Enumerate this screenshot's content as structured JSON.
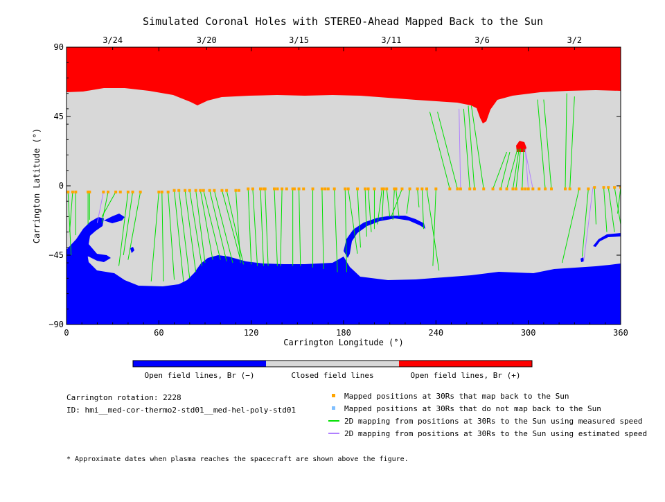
{
  "chart_data": {
    "type": "map",
    "title": "Simulated Coronal Holes with STEREO-Ahead Mapped Back to the Sun",
    "xlabel": "Carrington Longitude (°)",
    "ylabel": "Carrington Latitude (°)",
    "xlim": [
      0,
      360
    ],
    "ylim": [
      -90,
      90
    ],
    "x_ticks": [
      "0",
      "60",
      "120",
      "180",
      "240",
      "300",
      "360"
    ],
    "y_ticks": [
      "90",
      "45",
      "0",
      "−45",
      "−90"
    ],
    "top_dates": [
      {
        "label": "3/24",
        "lon": 30
      },
      {
        "label": "3/20",
        "lon": 91
      },
      {
        "label": "3/15",
        "lon": 151
      },
      {
        "label": "3/11",
        "lon": 211
      },
      {
        "label": "3/6",
        "lon": 270
      },
      {
        "label": "3/2",
        "lon": 330
      }
    ],
    "colorbar": [
      {
        "label": "Open field lines, Br (−)",
        "color": "#0000ff"
      },
      {
        "label": "Closed field lines",
        "color": "#d8d8d8"
      },
      {
        "label": "Open field lines, Br (+)",
        "color": "#ff0000"
      }
    ],
    "mapped_points": [
      [
        1,
        -4
      ],
      [
        4,
        -4
      ],
      [
        6,
        -4
      ],
      [
        14,
        -4
      ],
      [
        15,
        -4
      ],
      [
        24,
        -4
      ],
      [
        27,
        -4
      ],
      [
        32,
        -4
      ],
      [
        35,
        -4
      ],
      [
        40,
        -4
      ],
      [
        43,
        -4
      ],
      [
        48,
        -4
      ],
      [
        60,
        -4
      ],
      [
        62,
        -4
      ],
      [
        66,
        -4
      ],
      [
        70,
        -3
      ],
      [
        73,
        -3
      ],
      [
        77,
        -3
      ],
      [
        80,
        -3
      ],
      [
        84,
        -3
      ],
      [
        87,
        -3
      ],
      [
        89,
        -3
      ],
      [
        93,
        -3
      ],
      [
        96,
        -3
      ],
      [
        101,
        -3
      ],
      [
        104,
        -3
      ],
      [
        110,
        -3
      ],
      [
        112,
        -3
      ],
      [
        118,
        -2
      ],
      [
        121,
        -2
      ],
      [
        126,
        -2
      ],
      [
        128,
        -2
      ],
      [
        129,
        -2
      ],
      [
        135,
        -2
      ],
      [
        137,
        -2
      ],
      [
        140,
        -2
      ],
      [
        143,
        -2
      ],
      [
        147,
        -2
      ],
      [
        148,
        -2
      ],
      [
        151,
        -2
      ],
      [
        154,
        -2
      ],
      [
        160,
        -2
      ],
      [
        166,
        -2
      ],
      [
        168,
        -2
      ],
      [
        170,
        -2
      ],
      [
        174,
        -2
      ],
      [
        181,
        -2
      ],
      [
        183,
        -2
      ],
      [
        189,
        -2
      ],
      [
        194,
        -2
      ],
      [
        196,
        -2
      ],
      [
        200,
        -2
      ],
      [
        205,
        -2
      ],
      [
        206,
        -2
      ],
      [
        208,
        -2
      ],
      [
        213,
        -2
      ],
      [
        214,
        -2
      ],
      [
        218,
        -2
      ],
      [
        223,
        -2
      ],
      [
        228,
        -2
      ],
      [
        231,
        -2
      ],
      [
        234,
        -2
      ],
      [
        240,
        -2
      ],
      [
        249,
        -2
      ],
      [
        254,
        -2
      ],
      [
        256,
        -2
      ],
      [
        262,
        -2
      ],
      [
        265,
        -2
      ],
      [
        271,
        -2
      ],
      [
        277,
        -2
      ],
      [
        282,
        -2
      ],
      [
        286,
        -2
      ],
      [
        290,
        -2
      ],
      [
        292,
        -2
      ],
      [
        296,
        -2
      ],
      [
        298,
        -2
      ],
      [
        300,
        -2
      ],
      [
        303,
        -2
      ],
      [
        307,
        -2
      ],
      [
        311,
        -2
      ],
      [
        315,
        -2
      ],
      [
        324,
        -2
      ],
      [
        327,
        -2
      ],
      [
        333,
        -2
      ],
      [
        339,
        -2
      ],
      [
        343,
        -1
      ],
      [
        349,
        -1
      ],
      [
        352,
        -1
      ],
      [
        356,
        -1
      ],
      [
        360,
        -1
      ]
    ],
    "unmapped_points": [],
    "measured_speed_links": [
      [
        [
          1,
          -4
        ],
        [
          3,
          -45
        ]
      ],
      [
        [
          4,
          -4
        ],
        [
          2,
          -30
        ]
      ],
      [
        [
          6,
          -4
        ],
        [
          6,
          -32
        ]
      ],
      [
        [
          14,
          -4
        ],
        [
          14,
          -25
        ]
      ],
      [
        [
          15,
          -4
        ],
        [
          15,
          -22
        ]
      ],
      [
        [
          27,
          -4
        ],
        [
          23,
          -24
        ]
      ],
      [
        [
          32,
          -4
        ],
        [
          23,
          -20
        ]
      ],
      [
        [
          40,
          -4
        ],
        [
          34,
          -52
        ]
      ],
      [
        [
          43,
          -4
        ],
        [
          37,
          -45
        ]
      ],
      [
        [
          48,
          -4
        ],
        [
          40,
          -48
        ]
      ],
      [
        [
          60,
          -4
        ],
        [
          55,
          -62
        ]
      ],
      [
        [
          62,
          -4
        ],
        [
          63,
          -62
        ]
      ],
      [
        [
          66,
          -4
        ],
        [
          70,
          -61
        ]
      ],
      [
        [
          70,
          -3
        ],
        [
          76,
          -62
        ]
      ],
      [
        [
          73,
          -3
        ],
        [
          80,
          -60
        ]
      ],
      [
        [
          77,
          -3
        ],
        [
          84,
          -56
        ]
      ],
      [
        [
          80,
          -3
        ],
        [
          88,
          -52
        ]
      ],
      [
        [
          84,
          -3
        ],
        [
          90,
          -50
        ]
      ],
      [
        [
          87,
          -3
        ],
        [
          95,
          -48
        ]
      ],
      [
        [
          89,
          -3
        ],
        [
          100,
          -48
        ]
      ],
      [
        [
          93,
          -3
        ],
        [
          104,
          -49
        ]
      ],
      [
        [
          96,
          -3
        ],
        [
          108,
          -50
        ]
      ],
      [
        [
          101,
          -3
        ],
        [
          113,
          -48
        ]
      ],
      [
        [
          104,
          -3
        ],
        [
          115,
          -51
        ]
      ],
      [
        [
          110,
          -3
        ],
        [
          113,
          -50
        ]
      ],
      [
        [
          118,
          -2
        ],
        [
          120,
          -51
        ]
      ],
      [
        [
          121,
          -2
        ],
        [
          124,
          -52
        ]
      ],
      [
        [
          126,
          -2
        ],
        [
          128,
          -52
        ]
      ],
      [
        [
          129,
          -2
        ],
        [
          131,
          -52
        ]
      ],
      [
        [
          135,
          -2
        ],
        [
          137,
          -52
        ]
      ],
      [
        [
          140,
          -2
        ],
        [
          139,
          -52
        ]
      ],
      [
        [
          147,
          -2
        ],
        [
          147,
          -52
        ]
      ],
      [
        [
          151,
          -2
        ],
        [
          152,
          -52
        ]
      ],
      [
        [
          160,
          -2
        ],
        [
          160,
          -53
        ]
      ],
      [
        [
          166,
          -2
        ],
        [
          167,
          -54
        ]
      ],
      [
        [
          174,
          -2
        ],
        [
          176,
          -56
        ]
      ],
      [
        [
          181,
          -2
        ],
        [
          182,
          -56
        ]
      ],
      [
        [
          183,
          -2
        ],
        [
          189,
          -44
        ]
      ],
      [
        [
          189,
          -2
        ],
        [
          191,
          -40
        ]
      ],
      [
        [
          194,
          -2
        ],
        [
          195,
          -33
        ]
      ],
      [
        [
          196,
          -2
        ],
        [
          198,
          -30
        ]
      ],
      [
        [
          200,
          -2
        ],
        [
          200,
          -28
        ]
      ],
      [
        [
          205,
          -2
        ],
        [
          202,
          -25
        ]
      ],
      [
        [
          206,
          -2
        ],
        [
          205,
          -22
        ]
      ],
      [
        [
          208,
          -2
        ],
        [
          210,
          -20
        ]
      ],
      [
        [
          213,
          -2
        ],
        [
          212,
          -22
        ]
      ],
      [
        [
          214,
          -2
        ],
        [
          216,
          -20
        ]
      ],
      [
        [
          218,
          -2
        ],
        [
          211,
          -20
        ]
      ],
      [
        [
          223,
          -2
        ],
        [
          221,
          -18
        ]
      ],
      [
        [
          228,
          -2
        ],
        [
          229,
          -14
        ]
      ],
      [
        [
          231,
          -2
        ],
        [
          232,
          -28
        ]
      ],
      [
        [
          234,
          -2
        ],
        [
          242,
          -55
        ]
      ],
      [
        [
          240,
          -2
        ],
        [
          238,
          -52
        ]
      ],
      [
        [
          249,
          -2
        ],
        [
          236,
          48
        ]
      ],
      [
        [
          254,
          -2
        ],
        [
          241,
          48
        ]
      ],
      [
        [
          262,
          -2
        ],
        [
          258,
          50
        ]
      ],
      [
        [
          265,
          -2
        ],
        [
          261,
          52
        ]
      ],
      [
        [
          271,
          -2
        ],
        [
          263,
          52
        ]
      ],
      [
        [
          277,
          -2
        ],
        [
          286,
          22
        ]
      ],
      [
        [
          282,
          -2
        ],
        [
          288,
          22
        ]
      ],
      [
        [
          286,
          -2
        ],
        [
          293,
          24
        ]
      ],
      [
        [
          290,
          -2
        ],
        [
          294,
          24
        ]
      ],
      [
        [
          292,
          -2
        ],
        [
          295,
          24
        ]
      ],
      [
        [
          296,
          -2
        ],
        [
          297,
          24
        ]
      ],
      [
        [
          311,
          -2
        ],
        [
          306,
          56
        ]
      ],
      [
        [
          315,
          -2
        ],
        [
          310,
          56
        ]
      ],
      [
        [
          324,
          -2
        ],
        [
          325,
          60
        ]
      ],
      [
        [
          327,
          -2
        ],
        [
          330,
          58
        ]
      ],
      [
        [
          333,
          -2
        ],
        [
          322,
          -50
        ]
      ],
      [
        [
          339,
          -2
        ],
        [
          335,
          -46
        ]
      ],
      [
        [
          343,
          -1
        ],
        [
          344,
          -25
        ]
      ],
      [
        [
          349,
          -1
        ],
        [
          351,
          -30
        ]
      ],
      [
        [
          352,
          -1
        ],
        [
          356,
          -30
        ]
      ],
      [
        [
          356,
          -1
        ],
        [
          360,
          -25
        ]
      ],
      [
        [
          360,
          -1
        ],
        [
          358,
          -18
        ]
      ]
    ],
    "estimated_speed_links": [
      [
        [
          24,
          -4
        ],
        [
          20,
          -24
        ]
      ],
      [
        [
          256,
          -2
        ],
        [
          255,
          50
        ]
      ],
      [
        [
          300,
          -2
        ],
        [
          298,
          24
        ]
      ],
      [
        [
          303,
          -2
        ],
        [
          298,
          23
        ]
      ],
      [
        [
          342,
          -1
        ],
        [
          336,
          -49
        ]
      ]
    ]
  },
  "info": {
    "rotation": "Carrington rotation: 2228",
    "id": "ID: hmi__med-cor-thermo2-std01__med-hel-poly-std01"
  },
  "legend": [
    {
      "label": "Mapped positions at 30Rs that map back to the Sun",
      "color": "#ffa500",
      "kind": "square"
    },
    {
      "label": "Mapped positions at 30Rs that do not map back to the Sun",
      "color": "#7fbfff",
      "kind": "square"
    },
    {
      "label": "2D mapping from positions at 30Rs to the Sun using measured speed",
      "color": "#00e000",
      "kind": "line"
    },
    {
      "label": "2D mapping from positions at 30Rs to the Sun using estimated speed",
      "color": "#b080ff",
      "kind": "line"
    }
  ],
  "footnote": "* Approximate dates when plasma reaches the spacecraft are shown above the figure."
}
